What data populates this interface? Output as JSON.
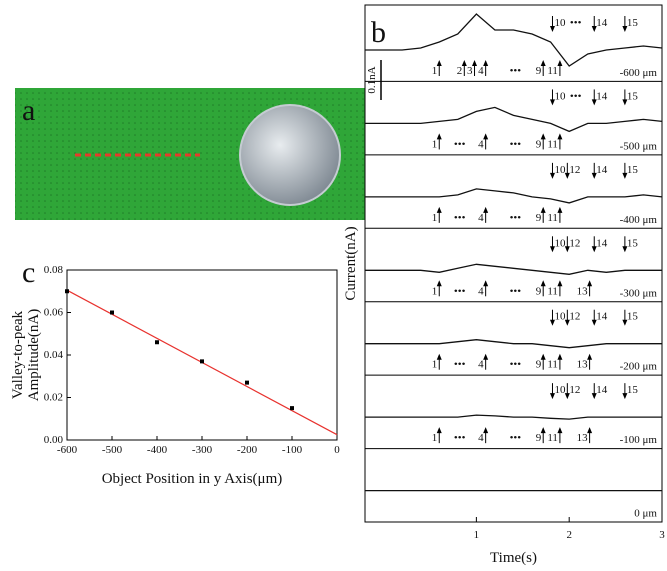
{
  "photo": {
    "label": "a"
  },
  "chart_data": [
    {
      "type": "scatter",
      "panel_label": "c",
      "x_label": "Object Position in y Axis(μm)",
      "y_label": [
        "Valley-to-peak",
        "Amplitude(nA)"
      ],
      "x": [
        -600,
        -500,
        -400,
        -300,
        -200,
        -100
      ],
      "values": [
        0.07,
        0.06,
        0.046,
        0.037,
        0.027,
        0.015
      ],
      "color": "#000000",
      "fit": {
        "x": [
          -600,
          0
        ],
        "values": [
          0.0705,
          0.0025
        ],
        "color": "#e8322e"
      },
      "xlim": [
        -600,
        0
      ],
      "xticks": [
        -600,
        -500,
        -400,
        -300,
        -200,
        -100,
        0
      ],
      "ylim": [
        0,
        0.08
      ],
      "yticks": [
        {
          "value": 0,
          "label": "0.00"
        },
        {
          "value": 0.02,
          "label": "0.02"
        },
        {
          "value": 0.04,
          "label": "0.04"
        },
        {
          "value": 0.06,
          "label": "0.06"
        },
        {
          "value": 0.08,
          "label": "0.08"
        }
      ]
    },
    {
      "type": "traces",
      "panel_label": "b",
      "x_label": "Time(s)",
      "y_label": "Current(nA)",
      "xlim": [
        -0.2,
        3
      ],
      "xticks": [
        1,
        2,
        3
      ],
      "scale_bar": {
        "value": 0.1,
        "label": "0.1nA"
      },
      "color": "#111111",
      "x": [
        -0.2,
        0,
        0.2,
        0.4,
        0.6,
        0.8,
        1.0,
        1.2,
        1.4,
        1.6,
        1.8,
        2.0,
        2.2,
        2.4,
        2.6,
        2.8,
        3.0
      ],
      "series": [
        {
          "name": "-600 μm",
          "values": [
            0,
            0,
            0,
            0.005,
            0.02,
            0.04,
            0.09,
            0.05,
            0.05,
            0.04,
            0.02,
            -0.04,
            -0.01,
            0,
            0.005,
            0.01,
            0.005
          ],
          "up": [
            {
              "label": "1",
              "x": 0.6
            },
            {
              "label": "2",
              "x": 0.87
            },
            {
              "label": "3",
              "x": 0.98
            },
            {
              "label": "4",
              "x": 1.1
            },
            {
              "label": "9",
              "x": 1.72
            },
            {
              "label": "11",
              "x": 1.9
            }
          ],
          "down": [
            {
              "label": "10",
              "x": 1.82
            },
            {
              "label": "14",
              "x": 2.27
            },
            {
              "label": "15",
              "x": 2.6
            }
          ],
          "gaps": [
            {
              "label": "•••",
              "x": 1.42
            },
            {
              "label": "•••",
              "x": 2.07
            }
          ]
        },
        {
          "name": "-500 μm",
          "values": [
            0,
            0,
            0,
            0,
            0.005,
            0.01,
            0.03,
            0.04,
            0.02,
            0.01,
            0,
            -0.02,
            0,
            0,
            0.005,
            0.01,
            0.005
          ],
          "up": [
            {
              "label": "1",
              "x": 0.6
            },
            {
              "label": "4",
              "x": 1.1
            },
            {
              "label": "9",
              "x": 1.72
            },
            {
              "label": "11",
              "x": 1.9
            }
          ],
          "down": [
            {
              "label": "10",
              "x": 1.82
            },
            {
              "label": "14",
              "x": 2.27
            },
            {
              "label": "15",
              "x": 2.6
            }
          ],
          "gaps": [
            {
              "label": "•••",
              "x": 0.82
            },
            {
              "label": "•••",
              "x": 1.42
            },
            {
              "label": "•••",
              "x": 2.07
            }
          ]
        },
        {
          "name": "-400 μm",
          "values": [
            0,
            0,
            0,
            0,
            0,
            0.005,
            0.02,
            0.015,
            0.01,
            0,
            -0.005,
            -0.015,
            0,
            0,
            0,
            0.005,
            0
          ],
          "up": [
            {
              "label": "1",
              "x": 0.6
            },
            {
              "label": "4",
              "x": 1.1
            },
            {
              "label": "9",
              "x": 1.72
            },
            {
              "label": "11",
              "x": 1.9
            }
          ],
          "down": [
            {
              "label": "10",
              "x": 1.82
            },
            {
              "label": "12",
              "x": 1.98
            },
            {
              "label": "14",
              "x": 2.27
            },
            {
              "label": "15",
              "x": 2.6
            }
          ],
          "gaps": [
            {
              "label": "•••",
              "x": 0.82
            },
            {
              "label": "•••",
              "x": 1.42
            }
          ]
        },
        {
          "name": "-300 μm",
          "values": [
            0,
            0,
            0,
            0,
            -0.005,
            0.005,
            0.015,
            0.01,
            0.005,
            0,
            -0.005,
            -0.01,
            0,
            -0.005,
            0,
            0,
            0
          ],
          "up": [
            {
              "label": "1",
              "x": 0.6
            },
            {
              "label": "4",
              "x": 1.1
            },
            {
              "label": "9",
              "x": 1.72
            },
            {
              "label": "11",
              "x": 1.9
            },
            {
              "label": "13",
              "x": 2.22
            }
          ],
          "down": [
            {
              "label": "10",
              "x": 1.82
            },
            {
              "label": "12",
              "x": 1.98
            },
            {
              "label": "14",
              "x": 2.27
            },
            {
              "label": "15",
              "x": 2.6
            }
          ],
          "gaps": [
            {
              "label": "•••",
              "x": 0.82
            },
            {
              "label": "•••",
              "x": 1.42
            }
          ]
        },
        {
          "name": "-200 μm",
          "values": [
            0,
            0,
            0,
            0,
            0,
            0.005,
            0.01,
            0.005,
            0,
            0,
            -0.005,
            -0.01,
            -0.005,
            0,
            0,
            0,
            0
          ],
          "up": [
            {
              "label": "1",
              "x": 0.6
            },
            {
              "label": "4",
              "x": 1.1
            },
            {
              "label": "9",
              "x": 1.72
            },
            {
              "label": "11",
              "x": 1.9
            },
            {
              "label": "13",
              "x": 2.22
            }
          ],
          "down": [
            {
              "label": "10",
              "x": 1.82
            },
            {
              "label": "12",
              "x": 1.98
            },
            {
              "label": "14",
              "x": 2.27
            },
            {
              "label": "15",
              "x": 2.6
            }
          ],
          "gaps": [
            {
              "label": "•••",
              "x": 0.82
            },
            {
              "label": "•••",
              "x": 1.42
            }
          ]
        },
        {
          "name": "-100 μm",
          "values": [
            0,
            0,
            0,
            0,
            0,
            0,
            0.005,
            0.003,
            0,
            0,
            -0.003,
            -0.005,
            0,
            0,
            0,
            0,
            0
          ],
          "up": [
            {
              "label": "1",
              "x": 0.6
            },
            {
              "label": "4",
              "x": 1.1
            },
            {
              "label": "9",
              "x": 1.72
            },
            {
              "label": "11",
              "x": 1.9
            },
            {
              "label": "13",
              "x": 2.22
            }
          ],
          "down": [
            {
              "label": "10",
              "x": 1.82
            },
            {
              "label": "12",
              "x": 1.98
            },
            {
              "label": "14",
              "x": 2.27
            },
            {
              "label": "15",
              "x": 2.6
            }
          ],
          "gaps": [
            {
              "label": "•••",
              "x": 0.82
            },
            {
              "label": "•••",
              "x": 1.42
            }
          ]
        },
        {
          "name": "0 μm",
          "values": [
            0,
            0,
            0,
            0,
            0,
            0,
            0,
            0,
            0,
            0,
            0,
            0,
            0,
            0,
            0,
            0,
            0
          ],
          "up": [],
          "down": [],
          "gaps": []
        }
      ]
    }
  ]
}
